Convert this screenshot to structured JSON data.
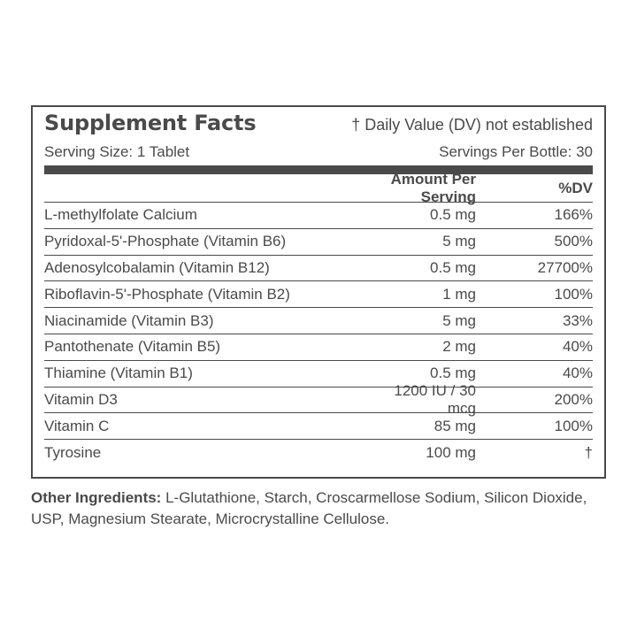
{
  "panel": {
    "title": "Supplement Facts",
    "dv_note": "† Daily Value (DV) not established",
    "serving_size": "Serving Size: 1 Tablet",
    "servings_per_bottle": "Servings Per Bottle: 30",
    "columns": {
      "amount": "Amount Per Serving",
      "dv": "%DV"
    },
    "rows": [
      {
        "name": "L-methylfolate Calcium",
        "amount": "0.5 mg",
        "dv": "166%"
      },
      {
        "name": "Pyridoxal-5'-Phosphate (Vitamin B6)",
        "amount": "5 mg",
        "dv": "500%"
      },
      {
        "name": "Adenosylcobalamin (Vitamin B12)",
        "amount": "0.5 mg",
        "dv": "27700%"
      },
      {
        "name": "Riboflavin-5'-Phosphate (Vitamin B2)",
        "amount": "1 mg",
        "dv": "100%"
      },
      {
        "name": "Niacinamide (Vitamin B3)",
        "amount": "5 mg",
        "dv": "33%"
      },
      {
        "name": "Pantothenate (Vitamin B5)",
        "amount": "2 mg",
        "dv": "40%"
      },
      {
        "name": "Thiamine (Vitamin B1)",
        "amount": "0.5 mg",
        "dv": "40%"
      },
      {
        "name": "Vitamin D3",
        "amount": "1200 IU / 30 mcg",
        "dv": "200%"
      },
      {
        "name": "Vitamin C",
        "amount": "85 mg",
        "dv": "100%"
      },
      {
        "name": "Tyrosine",
        "amount": "100 mg",
        "dv": "†"
      }
    ]
  },
  "other_ingredients": {
    "label": "Other Ingredients:",
    "text": "L-Glutathione, Starch, Croscarmellose Sodium, Silicon Dioxide, USP, Magnesium Stearate, Microcrystalline Cellulose."
  },
  "colors": {
    "text": "#4a4a4a",
    "background": "#ffffff"
  }
}
